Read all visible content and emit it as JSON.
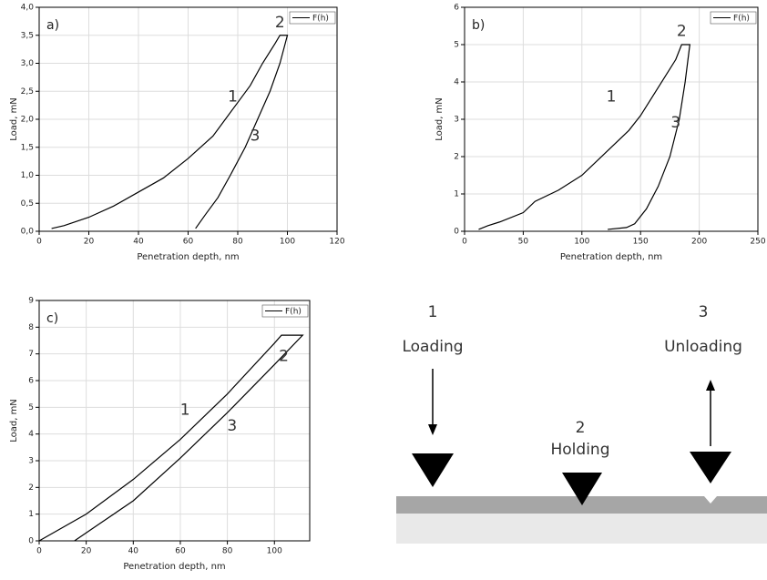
{
  "chart_data": [
    {
      "type": "line",
      "panel_label": "a)",
      "xlabel": "Penetration depth, nm",
      "ylabel": "Load, mN",
      "xlim": [
        0,
        120
      ],
      "ylim": [
        0,
        4
      ],
      "xticks": [
        0,
        20,
        40,
        60,
        80,
        100,
        120
      ],
      "yticks": [
        {
          "value": 0,
          "label": "0,0"
        },
        {
          "value": 0.5,
          "label": "0,5"
        },
        {
          "value": 1,
          "label": "1,0"
        },
        {
          "value": 1.5,
          "label": "1,5"
        },
        {
          "value": 2,
          "label": "2,0"
        },
        {
          "value": 2.5,
          "label": "2,5"
        },
        {
          "value": 3,
          "label": "3,0"
        },
        {
          "value": 3.5,
          "label": "3,5"
        },
        {
          "value": 4,
          "label": "4,0"
        }
      ],
      "grid": true,
      "legend": "upper right",
      "annotations": [
        "1",
        "2",
        "3"
      ],
      "x": [
        5,
        10,
        20,
        30,
        40,
        50,
        60,
        70,
        80,
        85,
        90,
        95,
        97,
        100,
        97,
        93,
        88,
        83,
        77,
        72,
        67,
        63
      ],
      "series": [
        {
          "name": "F(h)",
          "color": "#000000",
          "values": [
            0.05,
            0.1,
            0.25,
            0.45,
            0.7,
            0.95,
            1.3,
            1.7,
            2.3,
            2.6,
            3.0,
            3.35,
            3.5,
            3.5,
            3.0,
            2.5,
            2.0,
            1.5,
            1.0,
            0.6,
            0.3,
            0.05
          ]
        }
      ]
    },
    {
      "type": "line",
      "panel_label": "b)",
      "xlabel": "Penetration depth, nm",
      "ylabel": "Load, mN",
      "xlim": [
        0,
        250
      ],
      "ylim": [
        0,
        6
      ],
      "xticks": [
        0,
        50,
        100,
        150,
        200,
        250
      ],
      "yticks": [
        0,
        1,
        2,
        3,
        4,
        5,
        6
      ],
      "grid": true,
      "legend": "upper right",
      "annotations": [
        "1",
        "2",
        "3"
      ],
      "x": [
        12,
        20,
        30,
        50,
        60,
        80,
        100,
        120,
        140,
        150,
        160,
        170,
        180,
        185,
        192,
        188,
        183,
        175,
        165,
        155,
        145,
        138,
        122
      ],
      "series": [
        {
          "name": "F(h)",
          "color": "#000000",
          "values": [
            0.05,
            0.15,
            0.25,
            0.5,
            0.8,
            1.1,
            1.5,
            2.1,
            2.7,
            3.1,
            3.6,
            4.1,
            4.6,
            5.0,
            5.0,
            4.0,
            3.0,
            2.0,
            1.2,
            0.6,
            0.2,
            0.1,
            0.05
          ]
        }
      ]
    },
    {
      "type": "line",
      "panel_label": "c)",
      "xlabel": "Penetration depth, nm",
      "ylabel": "Load, mN",
      "xlim": [
        0,
        115
      ],
      "ylim": [
        0,
        9
      ],
      "xticks": [
        0,
        20,
        40,
        60,
        80,
        100
      ],
      "yticks": [
        0,
        1,
        2,
        3,
        4,
        5,
        6,
        7,
        8,
        9
      ],
      "grid": true,
      "legend": "upper right",
      "annotations": [
        "1",
        "2",
        "3"
      ],
      "x": [
        0,
        20,
        40,
        60,
        80,
        100,
        103,
        112,
        100,
        80,
        60,
        40,
        25,
        15
      ],
      "series": [
        {
          "name": "F(h)",
          "color": "#000000",
          "values": [
            0,
            1,
            2.3,
            3.8,
            5.5,
            7.4,
            7.7,
            7.7,
            6.6,
            4.8,
            3.1,
            1.5,
            0.6,
            0
          ]
        }
      ]
    }
  ],
  "diagram": {
    "steps": [
      {
        "number": "1",
        "label": "Loading"
      },
      {
        "number": "2",
        "label": "Holding"
      },
      {
        "number": "3",
        "label": "Unloading"
      }
    ]
  }
}
